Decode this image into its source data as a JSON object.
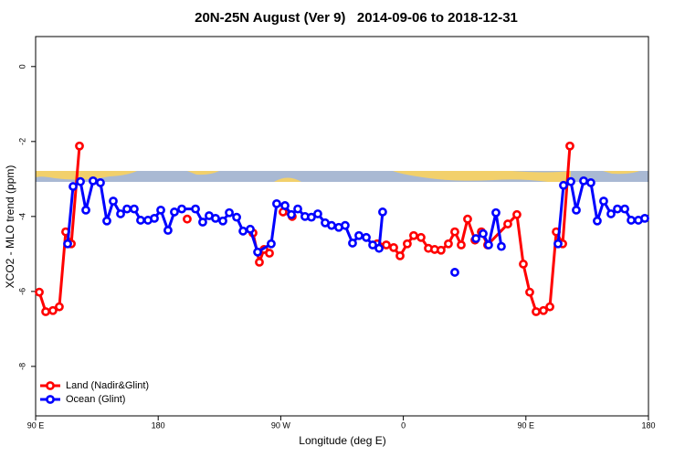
{
  "chart_data": {
    "type": "line",
    "title": "20N-25N August (Ver 9)   2014-09-06 to 2018-12-31",
    "x_label": "Longitude (deg E)",
    "y_label": "XCO2 - MLO trend (ppm)",
    "xlim": [
      90,
      540
    ],
    "xticks": [
      {
        "value": 90,
        "label": "90 E"
      },
      {
        "value": 180,
        "label": "180"
      },
      {
        "value": 270,
        "label": "90 W"
      },
      {
        "value": 360,
        "label": "0"
      },
      {
        "value": 450,
        "label": "90 E"
      },
      {
        "value": 540,
        "label": "180"
      }
    ],
    "ylim": [
      -9.32,
      0.8
    ],
    "yticks": [
      0,
      -2,
      -4,
      -6,
      -8
    ],
    "legend": "bottom-left",
    "series": [
      {
        "name": "Land (Nadir&Glint)",
        "color": "#ff0000",
        "x": [
          92.7,
          97.4,
          102.7,
          107.4,
          112.1,
          116.2,
          122.2,
          160,
          201.3,
          225,
          249.6,
          254.3,
          257.7,
          261.7,
          266,
          271.7,
          278.4,
          310,
          340.8,
          347.5,
          352.9,
          357.6,
          362.9,
          367.6,
          373.0,
          378.4,
          383.0,
          387.7,
          393.1,
          397.8,
          402.5,
          407.2,
          412.6,
          417.3,
          421.9,
          436.7,
          443.4,
          448.1,
          452.8,
          457.5,
          462.9,
          467.6,
          472.3,
          477.0,
          482.3
        ],
        "values": [
          -6.02,
          -6.54,
          -6.51,
          -6.41,
          -4.41,
          -4.73,
          -2.12,
          null,
          -4.07,
          null,
          -4.44,
          -5.22,
          -4.88,
          -4.98,
          null,
          -3.88,
          -4.0,
          null,
          -4.73,
          -4.76,
          -4.83,
          -5.05,
          -4.73,
          -4.51,
          -4.56,
          -4.85,
          -4.88,
          -4.9,
          -4.73,
          -4.41,
          -4.76,
          -4.07,
          -4.63,
          -4.41,
          -4.76,
          -4.2,
          -3.95,
          -5.27,
          -6.02,
          -6.54,
          -6.51,
          -6.41,
          -4.41,
          -4.73,
          -2.12
        ]
      },
      {
        "name": "Ocean (Glint)",
        "color": "#0000ff",
        "x": [
          113.5,
          117.5,
          122.9,
          126.9,
          132.2,
          137.6,
          142.3,
          147.0,
          152.4,
          157.1,
          162.4,
          167.1,
          172.5,
          177.2,
          181.9,
          187.2,
          191.9,
          197.3,
          207.4,
          212.7,
          217.4,
          222.1,
          227.5,
          232.2,
          237.6,
          242.3,
          247.6,
          253.0,
          263.0,
          267.0,
          273.1,
          277.8,
          282.5,
          287.8,
          292.5,
          297.2,
          302.6,
          307.3,
          312.6,
          317.3,
          322.7,
          327.4,
          332.8,
          337.5,
          342.2,
          344.8,
          370,
          397.8,
          405,
          413.3,
          418.6,
          422.6,
          428.0,
          432.0,
          450,
          473.6,
          477.6,
          483.0,
          487.0,
          492.4,
          497.7,
          502.4,
          507.1,
          512.5,
          517.2,
          522.6,
          527.3,
          532.6,
          537.3
        ],
        "values": [
          -4.73,
          -3.2,
          -3.07,
          -3.83,
          -3.05,
          -3.1,
          -4.12,
          -3.59,
          -3.93,
          -3.8,
          -3.8,
          -4.1,
          -4.1,
          -4.05,
          -3.83,
          -4.37,
          -3.88,
          -3.8,
          -3.8,
          -4.15,
          -3.98,
          -4.05,
          -4.12,
          -3.9,
          -4.02,
          -4.39,
          -4.34,
          -4.95,
          -4.73,
          -3.66,
          -3.71,
          -3.95,
          -3.8,
          -4.0,
          -4.02,
          -3.93,
          -4.17,
          -4.24,
          -4.29,
          -4.24,
          -4.71,
          -4.51,
          -4.56,
          -4.76,
          -4.85,
          -3.88,
          null,
          -5.49,
          null,
          -4.59,
          -4.46,
          -4.76,
          -3.9,
          -4.8,
          null,
          -4.73,
          -3.17,
          -3.07,
          -3.83,
          -3.05,
          -3.1,
          -4.12,
          -3.59,
          -3.93,
          -3.8,
          -3.8,
          -4.1,
          -4.1,
          -4.05
        ]
      }
    ]
  }
}
